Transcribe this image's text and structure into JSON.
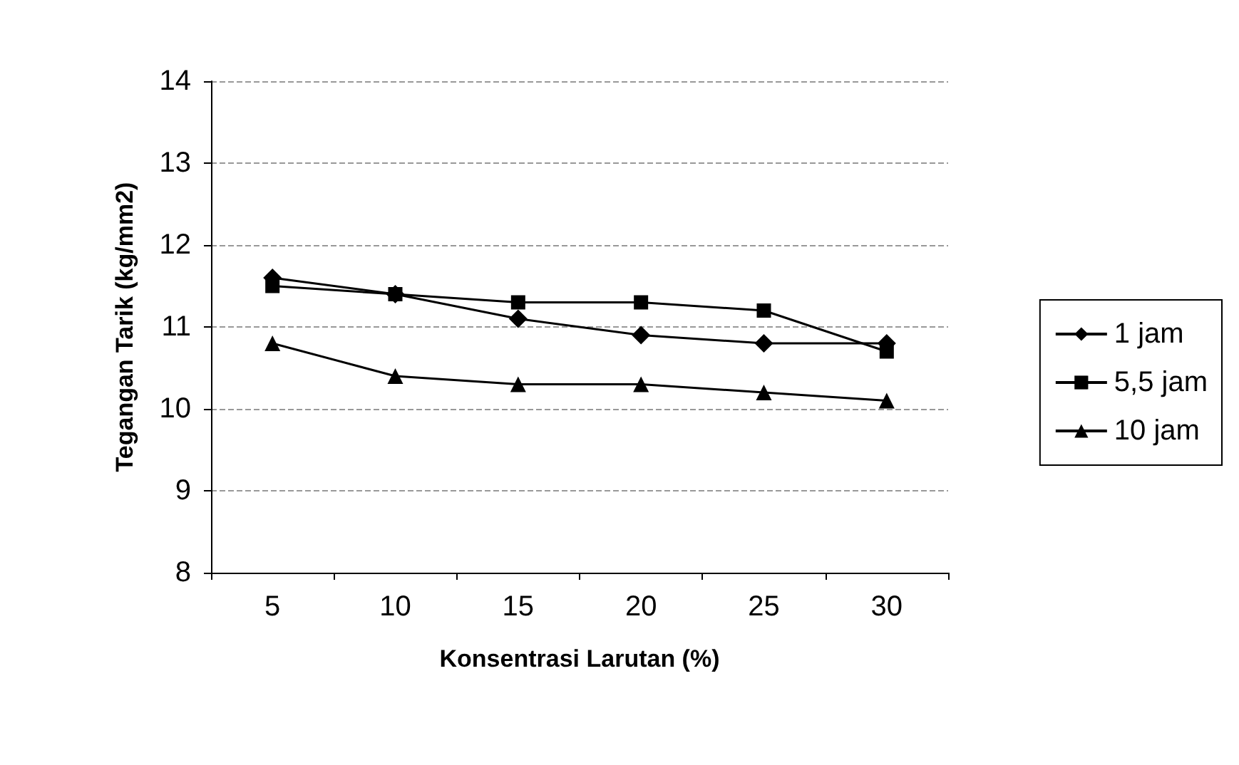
{
  "chart_data": {
    "type": "line",
    "xlabel": "Konsentrasi Larutan (%)",
    "ylabel": "Tegangan Tarik (kg/mm2)",
    "categories": [
      "5",
      "10",
      "15",
      "20",
      "25",
      "30"
    ],
    "series": [
      {
        "name": "1 jam",
        "color": "#000000",
        "marker": "diamond",
        "values": [
          11.6,
          11.4,
          11.1,
          10.9,
          10.8,
          10.8
        ]
      },
      {
        "name": "5,5 jam",
        "color": "#000000",
        "marker": "square",
        "values": [
          11.5,
          11.4,
          11.3,
          11.3,
          11.2,
          10.7
        ]
      },
      {
        "name": "10 jam",
        "color": "#000000",
        "marker": "triangle",
        "values": [
          10.8,
          10.4,
          10.3,
          10.3,
          10.2,
          10.1
        ]
      }
    ],
    "ylim": [
      8,
      14
    ],
    "yticks": [
      8,
      9,
      10,
      11,
      12,
      13,
      14
    ],
    "grid": "y",
    "legend": "right",
    "line_style": "solid"
  }
}
